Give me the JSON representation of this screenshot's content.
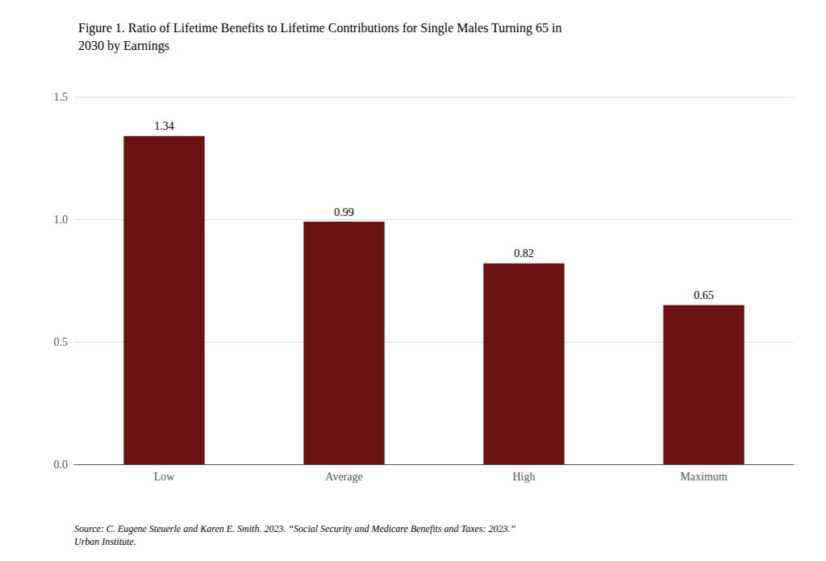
{
  "chart_data": {
    "type": "bar",
    "title": "Figure 1. Ratio of Lifetime Benefits to Lifetime Contributions for Single Males Turning 65 in\n2030 by Earnings",
    "categories": [
      "Low",
      "Average",
      "High",
      "Maximum"
    ],
    "values": [
      1.34,
      0.99,
      0.82,
      0.65
    ],
    "color": "#6B1212",
    "ylim": [
      0,
      1.5
    ],
    "yticks": [
      {
        "value": 0,
        "label": "0.0"
      },
      0.5,
      {
        "value": 1,
        "label": "1.0"
      },
      1.5
    ],
    "grid": true,
    "data_labels": true,
    "annotations": [
      "Source: C. Eugene Steuerle and Karen E. Smith. 2023. “Social Security and Medicare Benefits and Taxes: 2023.”\nUrban Institute."
    ]
  }
}
